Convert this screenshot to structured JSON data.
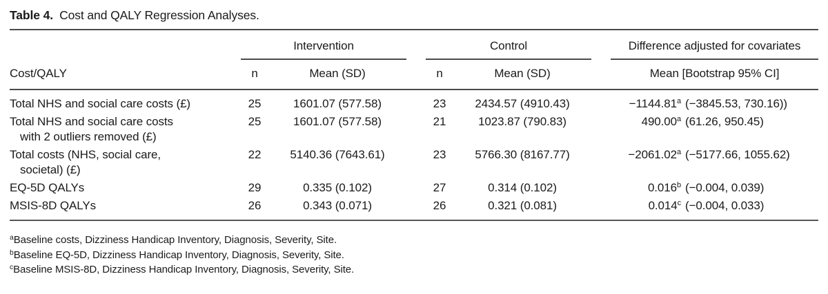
{
  "title": {
    "label": "Table 4.",
    "text": "Cost and QALY Regression Analyses."
  },
  "table": {
    "stub_header": "Cost/QALY",
    "groups": [
      {
        "label": "Intervention",
        "columns": [
          "n",
          "Mean (SD)"
        ]
      },
      {
        "label": "Control",
        "columns": [
          "n",
          "Mean (SD)"
        ]
      },
      {
        "label": "Difference adjusted for covariates",
        "columns": [
          "Mean [Bootstrap 95% CI]"
        ]
      }
    ],
    "rows": [
      {
        "label_line1": "Total NHS and social care costs (£)",
        "label_line2": "",
        "int_n": "25",
        "int_mean": "1601.07 (577.58)",
        "ctrl_n": "23",
        "ctrl_mean": "2434.57 (4910.43)",
        "diff_value": "−1144.81",
        "diff_sup": "a",
        "diff_ci": "(−3845.53, 730.16))"
      },
      {
        "label_line1": "Total NHS and social care costs",
        "label_line2": "with 2 outliers removed (£)",
        "int_n": "25",
        "int_mean": "1601.07 (577.58)",
        "ctrl_n": "21",
        "ctrl_mean": "1023.87 (790.83)",
        "diff_value": "490.00",
        "diff_sup": "a",
        "diff_ci": "(61.26, 950.45)"
      },
      {
        "label_line1": "Total costs (NHS, social care,",
        "label_line2": "societal) (£)",
        "int_n": "22",
        "int_mean": "5140.36 (7643.61)",
        "ctrl_n": "23",
        "ctrl_mean": "5766.30 (8167.77)",
        "diff_value": "−2061.02",
        "diff_sup": "a",
        "diff_ci": "(−5177.66, 1055.62)"
      },
      {
        "label_line1": "EQ-5D QALYs",
        "label_line2": "",
        "int_n": "29",
        "int_mean": "0.335 (0.102)",
        "ctrl_n": "27",
        "ctrl_mean": "0.314 (0.102)",
        "diff_value": "0.016",
        "diff_sup": "b",
        "diff_ci": "(−0.004, 0.039)"
      },
      {
        "label_line1": "MSIS-8D QALYs",
        "label_line2": "",
        "int_n": "26",
        "int_mean": "0.343 (0.071)",
        "ctrl_n": "26",
        "ctrl_mean": "0.321 (0.081)",
        "diff_value": "0.014",
        "diff_sup": "c",
        "diff_ci": "(−0.004, 0.033)"
      }
    ]
  },
  "footnotes": [
    {
      "marker": "a",
      "text": "Baseline costs, Dizziness Handicap Inventory, Diagnosis, Severity, Site."
    },
    {
      "marker": "b",
      "text": "Baseline EQ-5D, Dizziness Handicap Inventory, Diagnosis, Severity, Site."
    },
    {
      "marker": "c",
      "text": "Baseline MSIS-8D, Dizziness Handicap Inventory, Diagnosis, Severity, Site."
    }
  ]
}
